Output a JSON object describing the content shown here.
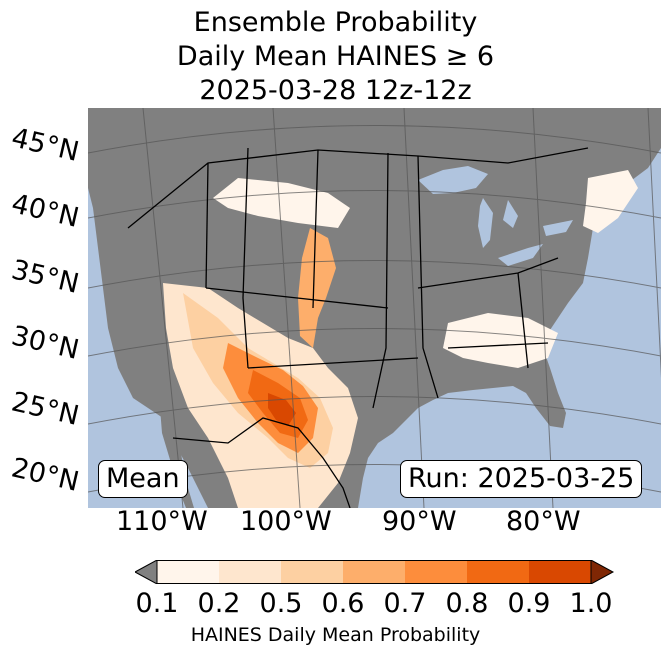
{
  "title": {
    "line1": "Ensemble Probability",
    "line2": "Daily Mean HAINES ≥ 6",
    "line3": "2025-03-28 12z-12z"
  },
  "map": {
    "lat_labels": [
      "45°N",
      "40°N",
      "35°N",
      "30°N",
      "25°N",
      "20°N"
    ],
    "lon_labels": [
      "110°W",
      "100°W",
      "90°W",
      "80°W"
    ],
    "stat_label": "Mean",
    "run_label": "Run: 2025-03-25",
    "colors": {
      "ocean": "#b0c4de",
      "land_no_data": "#808080",
      "gridline": "#555555",
      "border": "#000000"
    }
  },
  "colorbar": {
    "label": "HAINES Daily Mean Probability",
    "ticks": [
      "0.1",
      "0.2",
      "0.5",
      "0.6",
      "0.7",
      "0.8",
      "0.9",
      "1.0"
    ],
    "under_color": "#808080",
    "over_color": "#7f2704",
    "colors": [
      "#fff5eb",
      "#fee6ce",
      "#fdd0a2",
      "#fdae6b",
      "#fd8d3c",
      "#f16913",
      "#d94801"
    ]
  }
}
